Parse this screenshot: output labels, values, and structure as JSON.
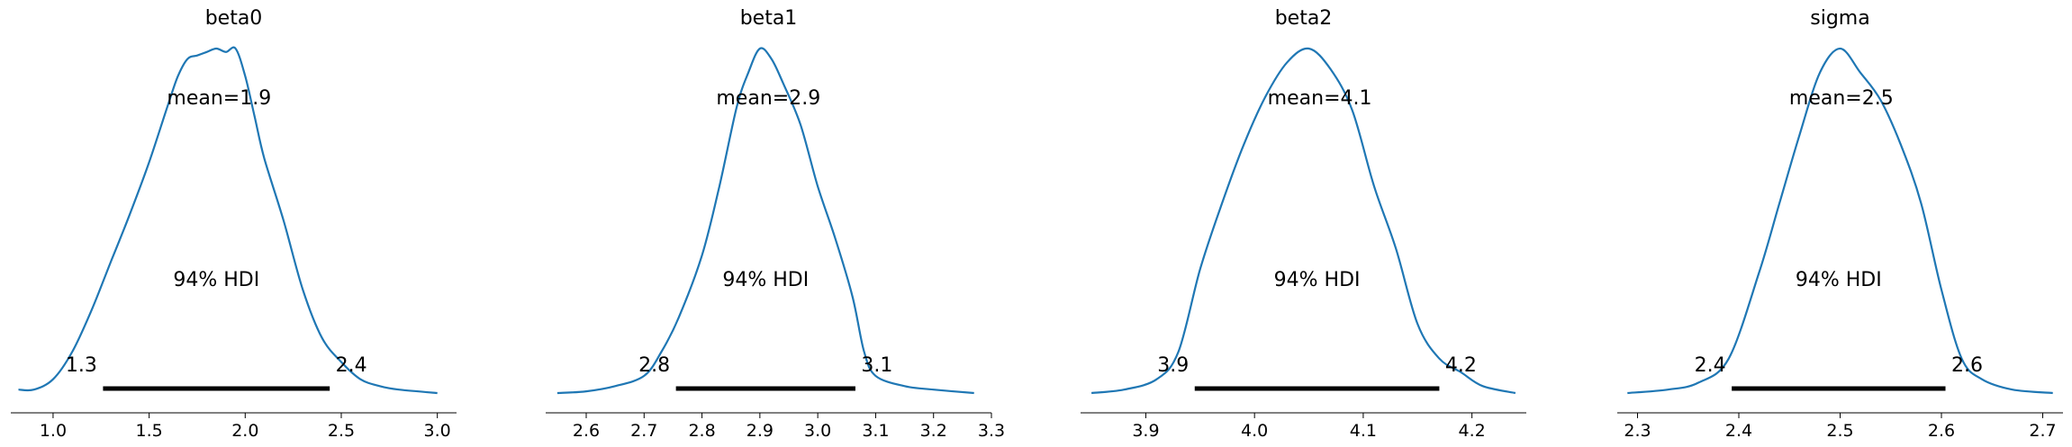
{
  "chart_data": [
    {
      "type": "line",
      "title": "beta0",
      "mean_label": "mean=1.9",
      "hdi_label": "94% HDI",
      "hdi": [
        1.26,
        2.44
      ],
      "hdi_low_label": "1.3",
      "hdi_high_label": "2.4",
      "xlim": [
        0.78,
        3.1
      ],
      "xticks": [
        1.0,
        1.5,
        2.0,
        2.5,
        3.0
      ],
      "xtick_labels": [
        "1.0",
        "1.5",
        "2.0",
        "2.5",
        "3.0"
      ],
      "ylim": [
        0,
        1.0
      ],
      "line_color": "#1f77b4",
      "density": {
        "x": [
          0.82,
          0.9,
          1.0,
          1.1,
          1.2,
          1.3,
          1.4,
          1.5,
          1.6,
          1.65,
          1.7,
          1.75,
          1.8,
          1.85,
          1.9,
          1.95,
          2.0,
          2.05,
          2.1,
          2.2,
          2.3,
          2.4,
          2.5,
          2.6,
          2.7,
          2.8,
          3.0
        ],
        "y": [
          0.01,
          0.01,
          0.04,
          0.12,
          0.24,
          0.38,
          0.52,
          0.67,
          0.84,
          0.92,
          0.97,
          0.98,
          0.99,
          1.0,
          0.99,
          1.0,
          0.92,
          0.8,
          0.68,
          0.5,
          0.3,
          0.16,
          0.09,
          0.04,
          0.02,
          0.01,
          0.0
        ]
      }
    },
    {
      "type": "line",
      "title": "beta1",
      "mean_label": "mean=2.9",
      "hdi_label": "94% HDI",
      "hdi": [
        2.755,
        3.065
      ],
      "hdi_low_label": "2.8",
      "hdi_high_label": "3.1",
      "xlim": [
        2.53,
        3.3
      ],
      "xticks": [
        2.6,
        2.7,
        2.8,
        2.9,
        3.0,
        3.1,
        3.2,
        3.3
      ],
      "xtick_labels": [
        "2.6",
        "2.7",
        "2.8",
        "2.9",
        "3.0",
        "3.1",
        "3.2",
        "3.3"
      ],
      "ylim": [
        0,
        1.0
      ],
      "line_color": "#1f77b4",
      "density": {
        "x": [
          2.55,
          2.6,
          2.65,
          2.7,
          2.73,
          2.76,
          2.8,
          2.83,
          2.86,
          2.88,
          2.9,
          2.92,
          2.94,
          2.97,
          3.0,
          3.03,
          3.06,
          3.08,
          3.1,
          3.15,
          3.2,
          3.27
        ],
        "y": [
          0.0,
          0.005,
          0.02,
          0.05,
          0.12,
          0.22,
          0.4,
          0.6,
          0.83,
          0.93,
          1.0,
          0.97,
          0.9,
          0.78,
          0.6,
          0.45,
          0.28,
          0.12,
          0.05,
          0.02,
          0.01,
          0.0
        ]
      }
    },
    {
      "type": "line",
      "title": "beta2",
      "mean_label": "mean=4.1",
      "hdi_label": "94% HDI",
      "hdi": [
        3.945,
        4.17
      ],
      "hdi_low_label": "3.9",
      "hdi_high_label": "4.2",
      "xlim": [
        3.84,
        4.25
      ],
      "xticks": [
        3.9,
        4.0,
        4.1,
        4.2
      ],
      "xtick_labels": [
        "3.9",
        "4.0",
        "4.1",
        "4.2"
      ],
      "ylim": [
        0,
        1.0
      ],
      "line_color": "#1f77b4",
      "density": {
        "x": [
          3.85,
          3.88,
          3.91,
          3.93,
          3.95,
          3.97,
          3.99,
          4.01,
          4.03,
          4.05,
          4.07,
          4.09,
          4.11,
          4.13,
          4.15,
          4.17,
          4.19,
          4.21,
          4.24
        ],
        "y": [
          0.0,
          0.01,
          0.04,
          0.12,
          0.36,
          0.55,
          0.72,
          0.86,
          0.96,
          1.0,
          0.94,
          0.82,
          0.6,
          0.42,
          0.2,
          0.1,
          0.06,
          0.02,
          0.0
        ]
      }
    },
    {
      "type": "line",
      "title": "sigma",
      "mean_label": "mean=2.5",
      "hdi_label": "94% HDI",
      "hdi": [
        2.393,
        2.604
      ],
      "hdi_low_label": "2.4",
      "hdi_high_label": "2.6",
      "xlim": [
        2.28,
        2.72
      ],
      "xticks": [
        2.3,
        2.4,
        2.5,
        2.6,
        2.7
      ],
      "xtick_labels": [
        "2.3",
        "2.4",
        "2.5",
        "2.6",
        "2.7"
      ],
      "ylim": [
        0,
        1.0
      ],
      "line_color": "#1f77b4",
      "density": {
        "x": [
          2.29,
          2.33,
          2.36,
          2.39,
          2.42,
          2.44,
          2.46,
          2.48,
          2.5,
          2.52,
          2.54,
          2.56,
          2.58,
          2.6,
          2.62,
          2.64,
          2.67,
          2.71
        ],
        "y": [
          0.0,
          0.01,
          0.03,
          0.1,
          0.35,
          0.55,
          0.75,
          0.93,
          1.0,
          0.93,
          0.85,
          0.72,
          0.55,
          0.3,
          0.1,
          0.04,
          0.01,
          0.0
        ]
      }
    }
  ]
}
